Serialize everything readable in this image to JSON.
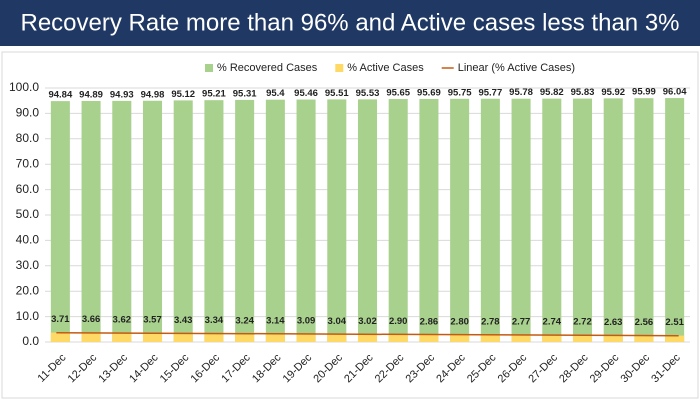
{
  "chart_data": {
    "type": "bar",
    "title": "Recovery Rate more than 96% and Active cases less than 3%",
    "categories": [
      "11-Dec",
      "12-Dec",
      "13-Dec",
      "14-Dec",
      "15-Dec",
      "16-Dec",
      "17-Dec",
      "18-Dec",
      "19-Dec",
      "20-Dec",
      "21-Dec",
      "22-Dec",
      "23-Dec",
      "24-Dec",
      "25-Dec",
      "26-Dec",
      "27-Dec",
      "28-Dec",
      "29-Dec",
      "30-Dec",
      "31-Dec"
    ],
    "series": [
      {
        "name": "% Recovered Cases",
        "color": "#a9d18e",
        "values": [
          94.84,
          94.89,
          94.93,
          94.98,
          95.12,
          95.21,
          95.31,
          95.4,
          95.46,
          95.51,
          95.53,
          95.65,
          95.69,
          95.75,
          95.77,
          95.78,
          95.82,
          95.83,
          95.92,
          95.99,
          96.04
        ]
      },
      {
        "name": "% Active Cases",
        "color": "#ffd966",
        "values": [
          3.71,
          3.66,
          3.62,
          3.57,
          3.43,
          3.34,
          3.24,
          3.14,
          3.09,
          3.04,
          3.02,
          2.9,
          2.86,
          2.8,
          2.78,
          2.77,
          2.74,
          2.72,
          2.63,
          2.56,
          2.51
        ],
        "value_labels": [
          "3.71",
          "3.66",
          "3.62",
          "3.57",
          "3.43",
          "3.34",
          "3.24",
          "3.14",
          "3.09",
          "3.04",
          "3.02",
          "2.90",
          "2.86",
          "2.80",
          "2.78",
          "2.77",
          "2.74",
          "2.72",
          "2.63",
          "2.56",
          "2.51"
        ]
      }
    ],
    "trendline": {
      "name": "Linear (% Active Cases)",
      "color": "#c55a11"
    },
    "ylim": [
      0,
      100
    ],
    "yticks": [
      {
        "value": 0,
        "label": "0.0"
      },
      {
        "value": 10,
        "label": "10.0"
      },
      {
        "value": 20,
        "label": "20.0"
      },
      {
        "value": 30,
        "label": "30.0"
      },
      {
        "value": 40,
        "label": "40.0"
      },
      {
        "value": 50,
        "label": "50.0"
      },
      {
        "value": 60,
        "label": "60.0"
      },
      {
        "value": 70,
        "label": "70.0"
      },
      {
        "value": 80,
        "label": "80.0"
      },
      {
        "value": 90,
        "label": "90.0"
      },
      {
        "value": 100,
        "label": "100.0"
      }
    ],
    "grid": true
  }
}
